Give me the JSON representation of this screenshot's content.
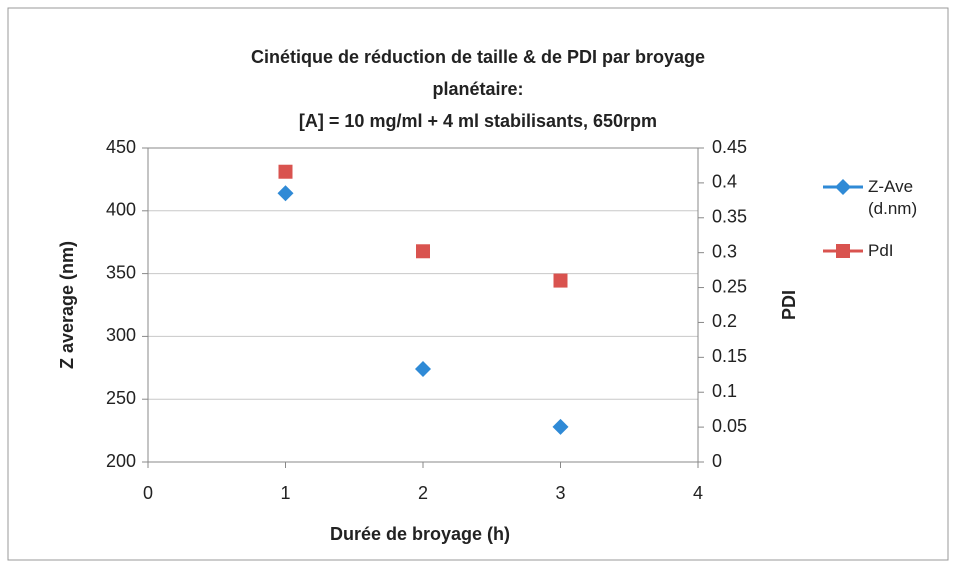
{
  "chart_data": {
    "type": "scatter",
    "title": [
      "Cinétique de réduction de taille & de PDI par broyage",
      "planétaire:",
      "[A] = 10 mg/ml + 4 ml stabilisants, 650rpm"
    ],
    "x_label": "Durée de broyage (h)",
    "y_label": "Z average (nm)",
    "y2_label": "PDI",
    "x": [
      1,
      2,
      3
    ],
    "series": [
      {
        "name": "Z-Ave (d.nm)",
        "color": "#2f8ad6",
        "marker": "diamond",
        "values": [
          414,
          274,
          228
        ]
      },
      {
        "name": "PdI",
        "color": "#d9534f",
        "marker": "square",
        "axis": "y2",
        "values": [
          0.416,
          0.302,
          0.26
        ]
      }
    ],
    "xlim": [
      0,
      4
    ],
    "xticks": [
      0,
      1,
      2,
      3,
      4
    ],
    "ylim": [
      200,
      450
    ],
    "yticks": [
      200,
      250,
      300,
      350,
      400,
      450
    ],
    "y2lim": [
      0,
      0.45
    ],
    "y2ticks": [
      0,
      0.05,
      0.1,
      0.15,
      0.2,
      0.25,
      0.3,
      0.35,
      0.4,
      0.45
    ],
    "grid": true,
    "legend": "right"
  }
}
